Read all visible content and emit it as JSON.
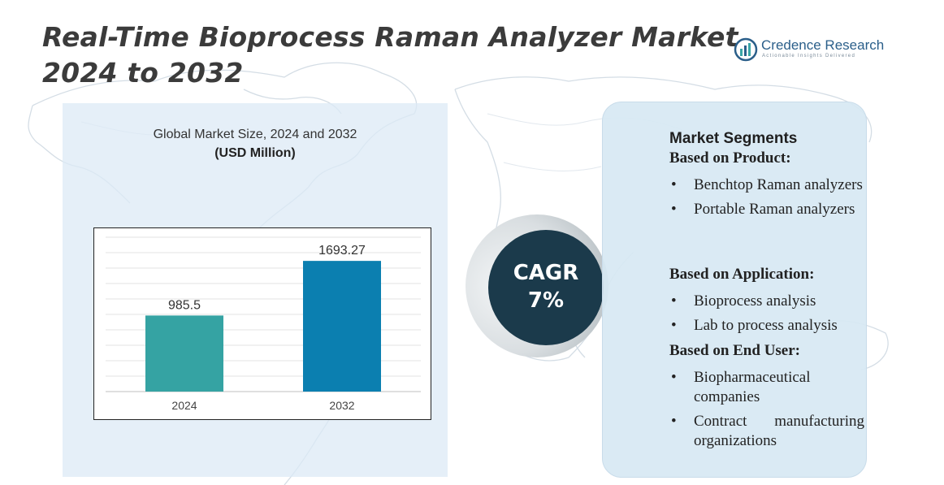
{
  "title": {
    "line1": "Real-Time Bioprocess Raman Analyzer Market",
    "line2": "2024 to 2032"
  },
  "logo": {
    "name": "Credence Research",
    "tagline": "Actionable Insights Delivered"
  },
  "chart_data": {
    "type": "bar",
    "title": "Global Market Size, 2024 and 2032",
    "unit_label": "(USD Million)",
    "categories": [
      "2024",
      "2032"
    ],
    "values": [
      985.5,
      1693.27
    ],
    "data_labels": [
      "985.5",
      "1693.27"
    ],
    "colors": [
      "#35a3a3",
      "#0b7fb0"
    ],
    "ylim": [
      0,
      2000
    ],
    "grid": true,
    "legend": "none"
  },
  "cagr": {
    "label": "CAGR",
    "value": "7%"
  },
  "segments": {
    "heading": "Market Segments",
    "groups": [
      {
        "title": "Based on Product:",
        "items": [
          "Benchtop Raman analyzers",
          "Portable Raman analyzers"
        ]
      },
      {
        "title": "Based on Application:",
        "items": [
          "Bioprocess analysis",
          "Lab to process analysis"
        ]
      },
      {
        "title": "Based on End User:",
        "items": [
          "Biopharmaceutical companies",
          "Contract manufacturing organizations"
        ]
      }
    ],
    "bullet": "•"
  }
}
